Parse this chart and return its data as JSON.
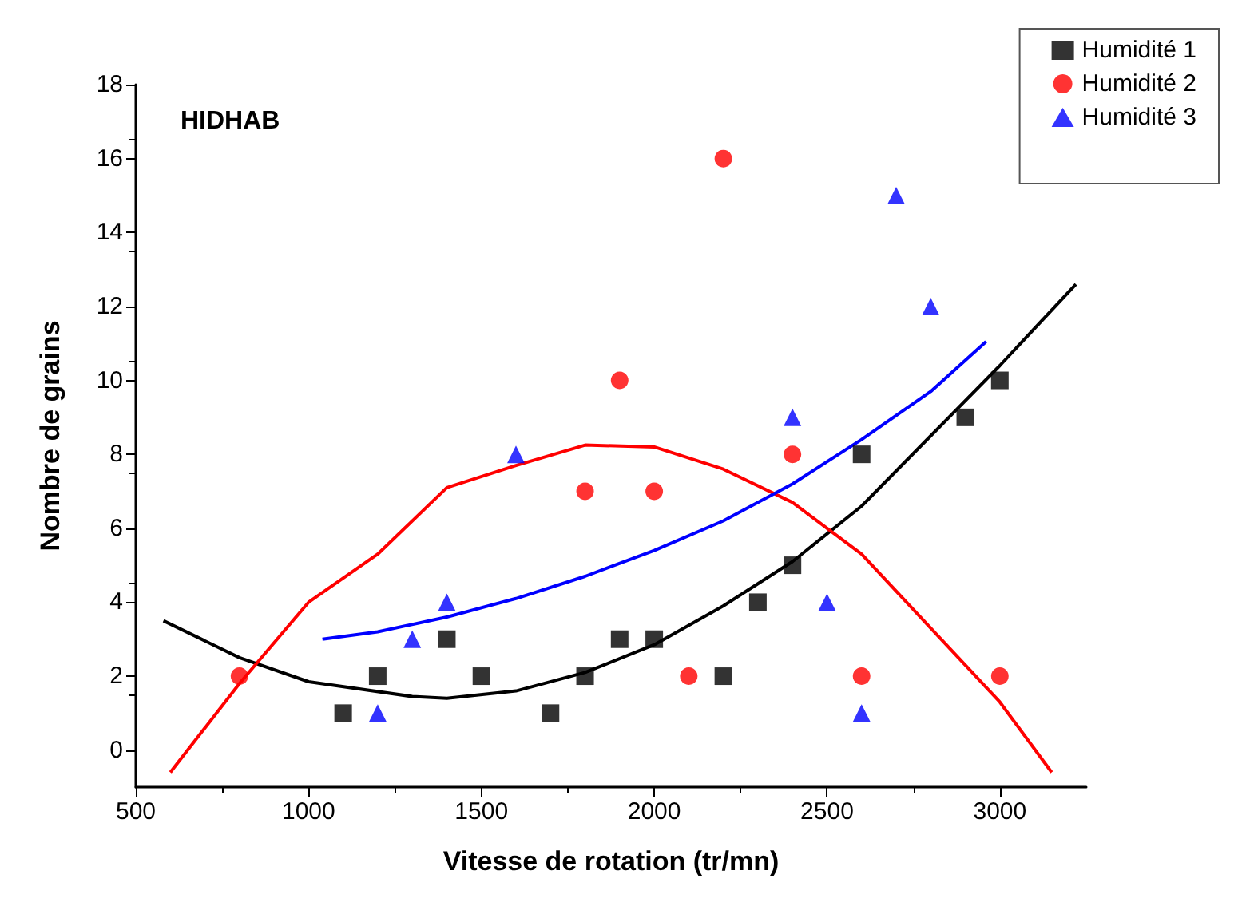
{
  "chart_data": {
    "type": "scatter",
    "xlabel": "Vitesse de rotation (tr/mn)",
    "ylabel": "Nombre de grains",
    "annotations": [
      "HIDHAB"
    ],
    "xlim": [
      500,
      3250
    ],
    "xticks": [
      500,
      1000,
      1500,
      2000,
      2500,
      3000
    ],
    "ylim": [
      -1,
      18
    ],
    "yticks": [
      0,
      2,
      4,
      6,
      8,
      10,
      12,
      14,
      16,
      18
    ],
    "grid": false,
    "legend": "top right",
    "series": [
      {
        "name": "Humidité 1",
        "color": "#000000",
        "marker": "square",
        "x": [
          1100,
          1200,
          1400,
          1500,
          1700,
          1800,
          1900,
          2000,
          2200,
          2300,
          2400,
          2600,
          2900,
          3000
        ],
        "values": [
          1,
          2,
          3,
          2,
          1,
          2,
          3,
          3,
          2,
          4,
          5,
          8,
          9,
          10
        ]
      },
      {
        "name": "Humidité 2",
        "color": "#ff0000",
        "marker": "circle",
        "x": [
          800,
          1800,
          1900,
          2000,
          2100,
          2200,
          2400,
          2600,
          3000
        ],
        "values": [
          2,
          7,
          10,
          7,
          2,
          16,
          8,
          2,
          2
        ]
      },
      {
        "name": "Humidité 3",
        "color": "#0000ff",
        "marker": "triangle",
        "x": [
          1200,
          1300,
          1400,
          1600,
          2400,
          2500,
          2600,
          2700,
          2800
        ],
        "values": [
          1,
          3,
          4,
          8,
          9,
          4,
          1,
          15,
          12
        ]
      },
      {
        "type": "line",
        "color": "#000000",
        "marker": "none",
        "line_style": "solid",
        "x": [
          580,
          800,
          1000,
          1300,
          1400,
          1600,
          1800,
          2000,
          2200,
          2400,
          2600,
          2800,
          3000,
          3220
        ],
        "values": [
          3.5,
          2.5,
          1.85,
          1.45,
          1.4,
          1.6,
          2.1,
          2.85,
          3.9,
          5.1,
          6.6,
          8.5,
          10.4,
          12.6
        ]
      },
      {
        "type": "line",
        "color": "#ff0000",
        "marker": "none",
        "line_style": "solid",
        "x": [
          600,
          800,
          1000,
          1200,
          1400,
          1600,
          1800,
          2000,
          2200,
          2400,
          2600,
          2800,
          3000,
          3150
        ],
        "values": [
          -0.6,
          1.8,
          4.0,
          5.3,
          7.1,
          7.7,
          8.25,
          8.2,
          7.6,
          6.7,
          5.3,
          3.3,
          1.3,
          -0.6
        ]
      },
      {
        "type": "line",
        "color": "#0000ff",
        "marker": "none",
        "line_style": "solid",
        "x": [
          1040,
          1200,
          1400,
          1600,
          1800,
          2000,
          2200,
          2400,
          2600,
          2800,
          2960
        ],
        "values": [
          3.0,
          3.2,
          3.6,
          4.1,
          4.7,
          5.4,
          6.2,
          7.2,
          8.4,
          9.7,
          11.05
        ]
      }
    ]
  }
}
